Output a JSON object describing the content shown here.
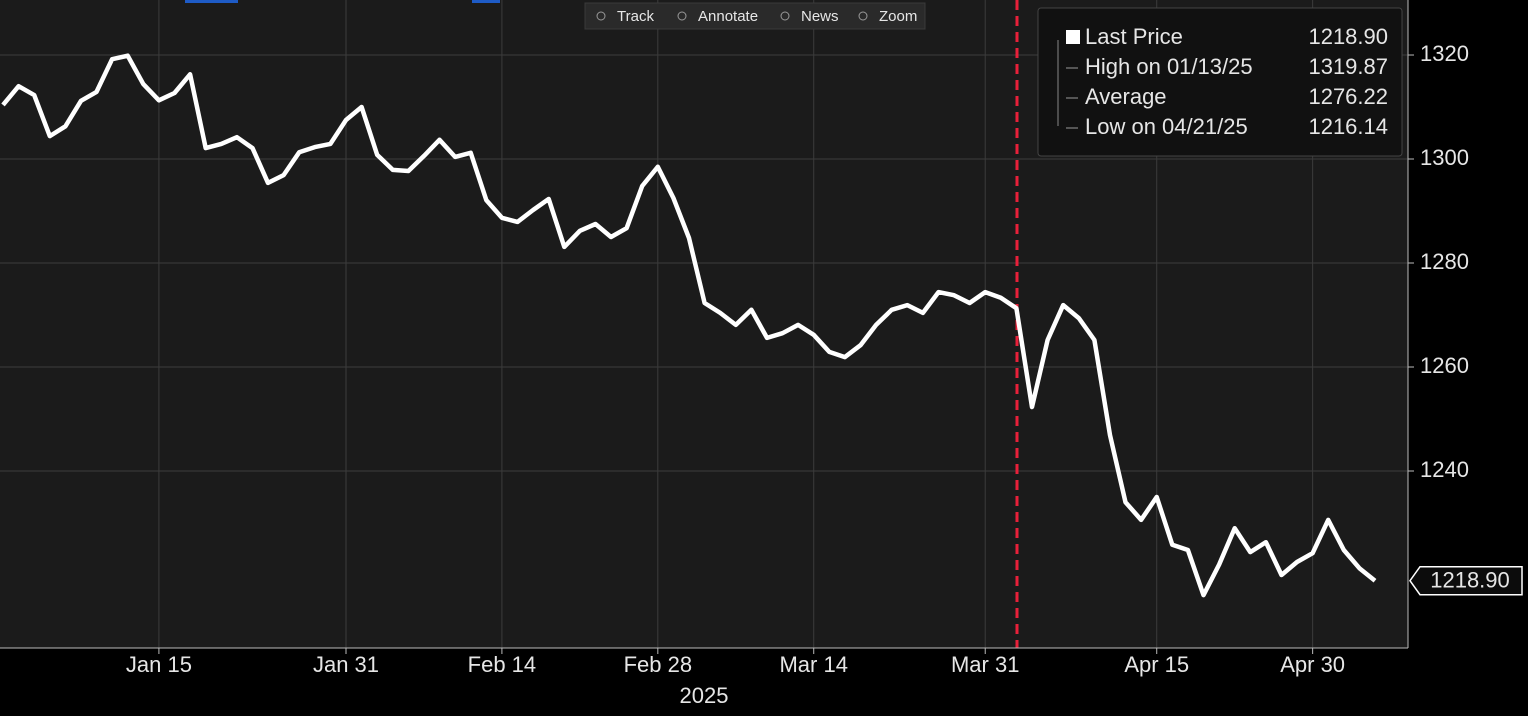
{
  "chart_data": {
    "type": "line",
    "xlabel": "2025",
    "categories": [
      null,
      null,
      null,
      null,
      null,
      null,
      null,
      null,
      null,
      null,
      "Jan 15",
      null,
      null,
      null,
      null,
      null,
      null,
      null,
      null,
      null,
      null,
      null,
      "Jan 31",
      null,
      null,
      null,
      null,
      null,
      null,
      null,
      null,
      null,
      "Feb 14",
      null,
      null,
      null,
      null,
      null,
      null,
      null,
      null,
      null,
      "Feb 28",
      null,
      null,
      null,
      null,
      null,
      null,
      null,
      null,
      null,
      "Mar 14",
      null,
      null,
      null,
      null,
      null,
      null,
      null,
      null,
      null,
      null,
      "Mar 31",
      null,
      null,
      null,
      null,
      null,
      null,
      null,
      null,
      null,
      null,
      "Apr 15",
      null,
      null,
      null,
      null,
      null,
      null,
      null,
      null,
      null,
      "Apr 30",
      null,
      null,
      null,
      null
    ],
    "series": [
      {
        "name": "Last Price",
        "color": "#ffffff",
        "last_label": "1218.90",
        "values": [
          1310.4,
          1314.0,
          1312.3,
          1304.4,
          1306.3,
          1311.2,
          1312.9,
          1319.2,
          1319.87,
          1314.4,
          1311.3,
          1312.7,
          1316.3,
          1302.1,
          1302.9,
          1304.2,
          1302.1,
          1295.4,
          1296.9,
          1301.3,
          1302.3,
          1302.9,
          1307.5,
          1310.0,
          1300.8,
          1297.9,
          1297.7,
          1300.6,
          1303.7,
          1300.4,
          1301.2,
          1292.1,
          1288.7,
          1287.9,
          1290.2,
          1292.3,
          1283.1,
          1286.2,
          1287.5,
          1285.0,
          1286.7,
          1294.8,
          1298.5,
          1292.5,
          1284.8,
          1272.3,
          1270.4,
          1268.1,
          1271.0,
          1265.6,
          1266.5,
          1268.1,
          1266.2,
          1262.9,
          1261.9,
          1264.2,
          1268.1,
          1271.0,
          1271.9,
          1270.4,
          1274.4,
          1273.8,
          1272.3,
          1274.4,
          1273.3,
          1271.3,
          1252.3,
          1265.2,
          1271.9,
          1269.4,
          1265.2,
          1246.9,
          1234.0,
          1230.6,
          1235.0,
          1225.8,
          1224.8,
          1216.14,
          1222.0,
          1229.0,
          1224.4,
          1226.3,
          1220.0,
          1222.5,
          1224.2,
          1230.6,
          1224.8,
          1221.3,
          1218.9
        ]
      }
    ],
    "stats": [
      {
        "label": "High on 01/13/25",
        "value": "1319.87"
      },
      {
        "label": "Average",
        "value": "1276.22"
      },
      {
        "label": "Low on 04/21/25",
        "value": "1216.14"
      }
    ],
    "ylim": [
      1205.96,
      1330.58
    ],
    "yticks": [
      1240,
      1260,
      1280,
      1300,
      1320
    ],
    "grid": true
  },
  "toolbar": [
    "Track",
    "Annotate",
    "News",
    "Zoom"
  ]
}
